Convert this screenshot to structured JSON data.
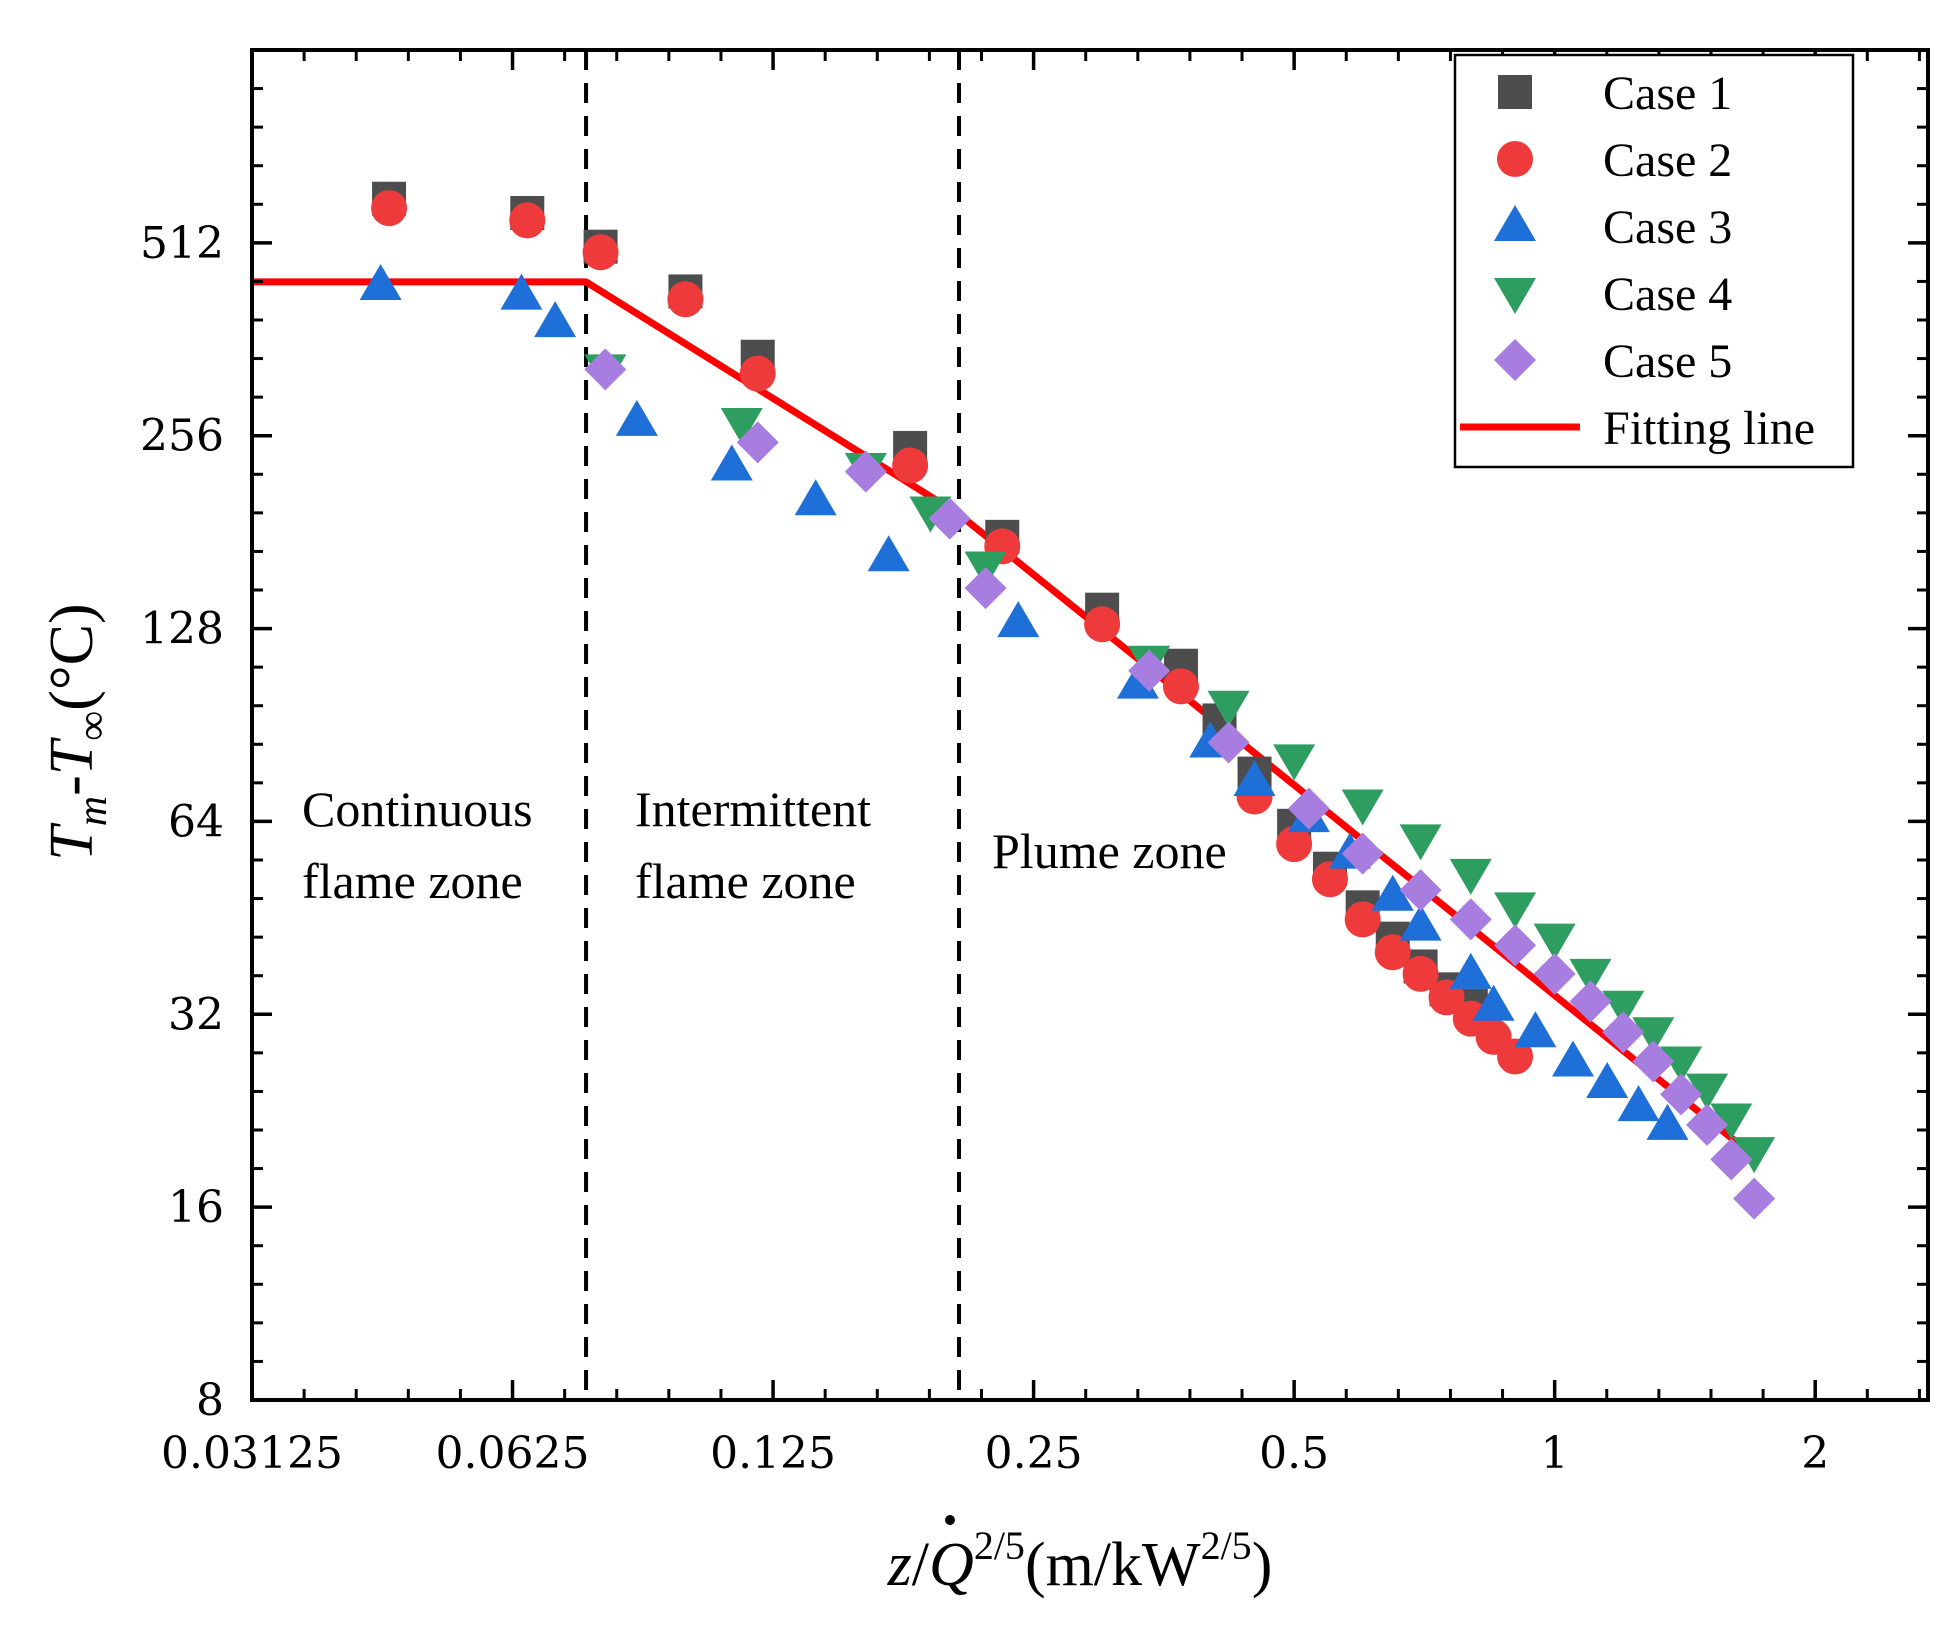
{
  "chart_data": {
    "type": "scatter",
    "x_scale": "log2",
    "y_scale": "log2",
    "xlim": [
      0.03125,
      2.7
    ],
    "ylim": [
      8,
      1024
    ],
    "x_ticks": [
      0.03125,
      0.0625,
      0.125,
      0.25,
      0.5,
      1,
      2
    ],
    "x_tick_labels": [
      "0.03125",
      "0.0625",
      "0.125",
      "0.25",
      "0.5",
      "1",
      "2"
    ],
    "y_ticks": [
      8,
      16,
      32,
      64,
      128,
      256,
      512
    ],
    "y_tick_labels": [
      "8",
      "16",
      "32",
      "64",
      "128",
      "256",
      "512"
    ],
    "xlabel": {
      "var": "z",
      "slash": "/",
      "qdot": "Q",
      "sup": "2/5",
      "units_open": "(m/kW",
      "units_sup": "2/5",
      "units_close": ")"
    },
    "ylabel": {
      "t1": "T",
      "s1": "m",
      "dash": "-",
      "t2": "T",
      "s2": "∞",
      "units": "(°C)"
    },
    "zone_boundaries": [
      0.076,
      0.205
    ],
    "zones": [
      {
        "line1": "Continuous",
        "line2": "flame zone"
      },
      {
        "line1": "Intermittent",
        "line2": "flame zone"
      },
      {
        "line1": "Plume zone",
        "line2": ""
      }
    ],
    "series": [
      {
        "name": "Case 1",
        "marker": "square",
        "color": "#4d4d4d",
        "x": [
          0.045,
          0.065,
          0.079,
          0.099,
          0.12,
          0.18,
          0.23,
          0.3,
          0.37,
          0.41,
          0.45,
          0.5,
          0.55,
          0.6,
          0.65,
          0.7,
          0.75,
          0.8
        ],
        "y": [
          600,
          570,
          505,
          430,
          340,
          245,
          178,
          137,
          112,
          92,
          76,
          63,
          54,
          47,
          42,
          38,
          35,
          33
        ]
      },
      {
        "name": "Case 2",
        "marker": "circle",
        "color": "#ee3a3a",
        "x": [
          0.045,
          0.065,
          0.079,
          0.099,
          0.12,
          0.18,
          0.23,
          0.3,
          0.37,
          0.45,
          0.5,
          0.55,
          0.6,
          0.65,
          0.7,
          0.75,
          0.8,
          0.85,
          0.9
        ],
        "y": [
          580,
          555,
          495,
          418,
          320,
          230,
          172,
          130,
          104,
          70,
          59,
          52,
          45,
          40,
          37,
          34,
          31.5,
          29.5,
          27.5
        ]
      },
      {
        "name": "Case 3",
        "marker": "triangle-up",
        "color": "#1f6fd8",
        "x": [
          0.044,
          0.064,
          0.07,
          0.087,
          0.112,
          0.14,
          0.17,
          0.24,
          0.33,
          0.4,
          0.45,
          0.52,
          0.58,
          0.65,
          0.7,
          0.8,
          0.85,
          0.95,
          1.05,
          1.15,
          1.25,
          1.35
        ],
        "y": [
          440,
          425,
          385,
          270,
          230,
          203,
          166,
          131,
          105,
          85,
          74,
          65,
          57,
          49,
          44,
          37,
          33,
          30,
          27,
          25,
          23,
          21.5
        ]
      },
      {
        "name": "Case 4",
        "marker": "triangle-down",
        "color": "#2e9e60",
        "x": [
          0.08,
          0.115,
          0.16,
          0.19,
          0.22,
          0.34,
          0.42,
          0.5,
          0.6,
          0.7,
          0.8,
          0.9,
          1.0,
          1.1,
          1.2,
          1.3,
          1.4,
          1.5,
          1.6,
          1.7
        ],
        "y": [
          325,
          268,
          228,
          195,
          160,
          114,
          97,
          80,
          68,
          60,
          53,
          47,
          42,
          37,
          33,
          30,
          27,
          24.5,
          22,
          19.5
        ]
      },
      {
        "name": "Case 5",
        "marker": "diamond",
        "color": "#a77de0",
        "x": [
          0.08,
          0.12,
          0.16,
          0.2,
          0.22,
          0.34,
          0.42,
          0.52,
          0.6,
          0.7,
          0.8,
          0.9,
          1.0,
          1.1,
          1.2,
          1.3,
          1.4,
          1.5,
          1.6,
          1.7
        ],
        "y": [
          325,
          250,
          225,
          190,
          148,
          110,
          85,
          67,
          57,
          50,
          45,
          41,
          37,
          33.5,
          30,
          27,
          24,
          21.5,
          19,
          16.5
        ]
      }
    ],
    "fit_line": {
      "name": "Fitting line",
      "color": "#ff0000",
      "x": [
        0.03125,
        0.076,
        0.205,
        1.7
      ],
      "y": [
        445,
        445,
        193,
        19.2
      ]
    },
    "legend": {
      "position": "top-right",
      "entries": [
        "Case 1",
        "Case 2",
        "Case 3",
        "Case 4",
        "Case 5",
        "Fitting line"
      ]
    }
  }
}
